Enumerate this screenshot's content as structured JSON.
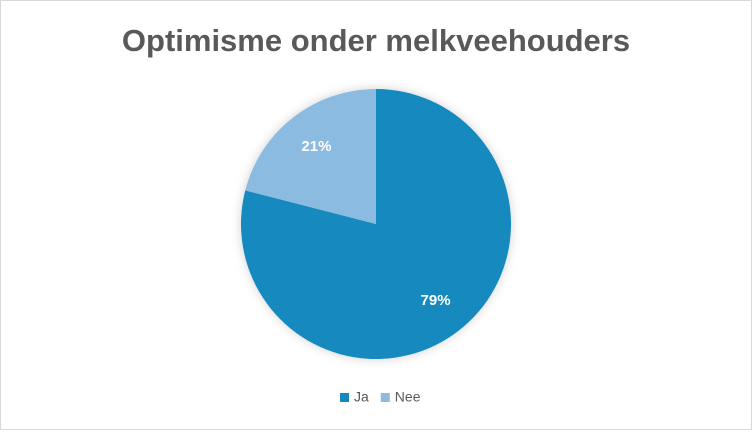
{
  "chart_data": {
    "type": "pie",
    "title": "Optimisme onder melkveehouders",
    "categories": [
      "Ja",
      "Nee"
    ],
    "values": [
      79,
      21
    ],
    "value_labels": [
      "79%",
      "21%"
    ],
    "colors": [
      "#1389bf",
      "#8bbbe1"
    ],
    "legend": "bottom"
  }
}
